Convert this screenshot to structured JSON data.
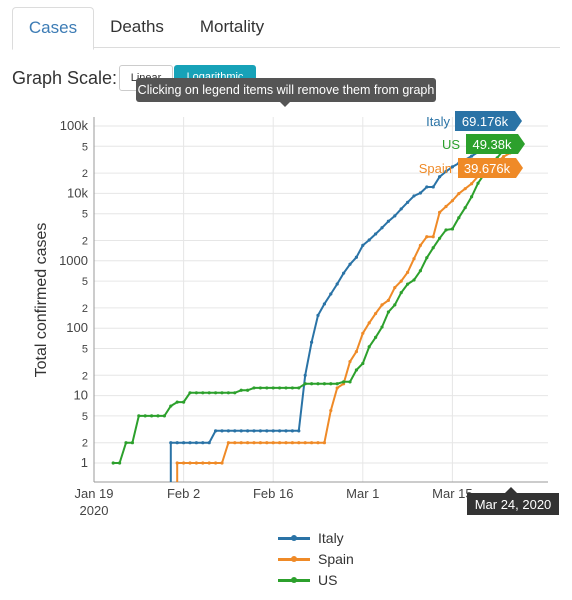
{
  "tabs": [
    {
      "label": "Cases",
      "active": true
    },
    {
      "label": "Deaths",
      "active": false
    },
    {
      "label": "Mortality",
      "active": false
    }
  ],
  "scale": {
    "label": "Graph Scale:",
    "linear_label": "Linear",
    "log_label": "Logarithmic",
    "selected": "Logarithmic"
  },
  "tooltip": "Clicking on legend items will remove them from graph",
  "hover_date": "Mar 24, 2020",
  "colors": {
    "Italy": "#2a73a6",
    "Spain": "#ef8a27",
    "US": "#2ca02c"
  },
  "chart_data": {
    "type": "line",
    "log_scale": true,
    "ylabel": "Total confirmed cases",
    "xlabel": "",
    "grid": true,
    "legend_position": "bottom",
    "x_ticks": [
      "Jan 19\n2020",
      "Feb 2",
      "Feb 16",
      "Mar 1",
      "Mar 15"
    ],
    "y_ticks": [
      "1",
      "2",
      "5",
      "10",
      "2",
      "5",
      "100",
      "2",
      "5",
      "1000",
      "2",
      "5",
      "10k",
      "2",
      "5",
      "100k"
    ],
    "y_tick_values": [
      1,
      2,
      5,
      10,
      20,
      50,
      100,
      200,
      500,
      1000,
      2000,
      5000,
      10000,
      20000,
      50000,
      100000
    ],
    "xlim": [
      "2020-01-19",
      "2020-03-24"
    ],
    "ylim": [
      1,
      100000
    ],
    "series": [
      {
        "name": "Italy",
        "color": "#2a73a6",
        "hover_label": "69.176k",
        "points": [
          [
            "2020-01-31",
            2
          ],
          [
            "2020-02-01",
            2
          ],
          [
            "2020-02-02",
            2
          ],
          [
            "2020-02-03",
            2
          ],
          [
            "2020-02-04",
            2
          ],
          [
            "2020-02-05",
            2
          ],
          [
            "2020-02-06",
            2
          ],
          [
            "2020-02-07",
            3
          ],
          [
            "2020-02-08",
            3
          ],
          [
            "2020-02-09",
            3
          ],
          [
            "2020-02-10",
            3
          ],
          [
            "2020-02-11",
            3
          ],
          [
            "2020-02-12",
            3
          ],
          [
            "2020-02-13",
            3
          ],
          [
            "2020-02-14",
            3
          ],
          [
            "2020-02-15",
            3
          ],
          [
            "2020-02-16",
            3
          ],
          [
            "2020-02-17",
            3
          ],
          [
            "2020-02-18",
            3
          ],
          [
            "2020-02-19",
            3
          ],
          [
            "2020-02-20",
            3
          ],
          [
            "2020-02-21",
            20
          ],
          [
            "2020-02-22",
            62
          ],
          [
            "2020-02-23",
            155
          ],
          [
            "2020-02-24",
            229
          ],
          [
            "2020-02-25",
            322
          ],
          [
            "2020-02-26",
            453
          ],
          [
            "2020-02-27",
            655
          ],
          [
            "2020-02-28",
            888
          ],
          [
            "2020-02-29",
            1128
          ],
          [
            "2020-03-01",
            1694
          ],
          [
            "2020-03-02",
            2036
          ],
          [
            "2020-03-03",
            2502
          ],
          [
            "2020-03-04",
            3089
          ],
          [
            "2020-03-05",
            3858
          ],
          [
            "2020-03-06",
            4636
          ],
          [
            "2020-03-07",
            5883
          ],
          [
            "2020-03-08",
            7375
          ],
          [
            "2020-03-09",
            9172
          ],
          [
            "2020-03-10",
            10149
          ],
          [
            "2020-03-11",
            12462
          ],
          [
            "2020-03-12",
            12462
          ],
          [
            "2020-03-13",
            17660
          ],
          [
            "2020-03-14",
            21157
          ],
          [
            "2020-03-15",
            24747
          ],
          [
            "2020-03-16",
            27980
          ],
          [
            "2020-03-17",
            31506
          ],
          [
            "2020-03-18",
            35713
          ],
          [
            "2020-03-19",
            41035
          ],
          [
            "2020-03-20",
            47021
          ],
          [
            "2020-03-21",
            53578
          ],
          [
            "2020-03-22",
            59138
          ],
          [
            "2020-03-23",
            63927
          ],
          [
            "2020-03-24",
            69176
          ]
        ]
      },
      {
        "name": "Spain",
        "color": "#ef8a27",
        "hover_label": "39.676k",
        "points": [
          [
            "2020-02-01",
            1
          ],
          [
            "2020-02-02",
            1
          ],
          [
            "2020-02-03",
            1
          ],
          [
            "2020-02-04",
            1
          ],
          [
            "2020-02-05",
            1
          ],
          [
            "2020-02-06",
            1
          ],
          [
            "2020-02-07",
            1
          ],
          [
            "2020-02-08",
            1
          ],
          [
            "2020-02-09",
            2
          ],
          [
            "2020-02-10",
            2
          ],
          [
            "2020-02-11",
            2
          ],
          [
            "2020-02-12",
            2
          ],
          [
            "2020-02-13",
            2
          ],
          [
            "2020-02-14",
            2
          ],
          [
            "2020-02-15",
            2
          ],
          [
            "2020-02-16",
            2
          ],
          [
            "2020-02-17",
            2
          ],
          [
            "2020-02-18",
            2
          ],
          [
            "2020-02-19",
            2
          ],
          [
            "2020-02-20",
            2
          ],
          [
            "2020-02-21",
            2
          ],
          [
            "2020-02-22",
            2
          ],
          [
            "2020-02-23",
            2
          ],
          [
            "2020-02-24",
            2
          ],
          [
            "2020-02-25",
            6
          ],
          [
            "2020-02-26",
            13
          ],
          [
            "2020-02-27",
            15
          ],
          [
            "2020-02-28",
            32
          ],
          [
            "2020-02-29",
            45
          ],
          [
            "2020-03-01",
            84
          ],
          [
            "2020-03-02",
            120
          ],
          [
            "2020-03-03",
            165
          ],
          [
            "2020-03-04",
            222
          ],
          [
            "2020-03-05",
            259
          ],
          [
            "2020-03-06",
            400
          ],
          [
            "2020-03-07",
            500
          ],
          [
            "2020-03-08",
            673
          ],
          [
            "2020-03-09",
            1073
          ],
          [
            "2020-03-10",
            1695
          ],
          [
            "2020-03-11",
            2277
          ],
          [
            "2020-03-12",
            2277
          ],
          [
            "2020-03-13",
            5232
          ],
          [
            "2020-03-14",
            6391
          ],
          [
            "2020-03-15",
            7798
          ],
          [
            "2020-03-16",
            9942
          ],
          [
            "2020-03-17",
            11748
          ],
          [
            "2020-03-18",
            13910
          ],
          [
            "2020-03-19",
            17963
          ],
          [
            "2020-03-20",
            20410
          ],
          [
            "2020-03-21",
            25374
          ],
          [
            "2020-03-22",
            28768
          ],
          [
            "2020-03-23",
            35136
          ],
          [
            "2020-03-24",
            39676
          ]
        ]
      },
      {
        "name": "US",
        "color": "#2ca02c",
        "hover_label": "49.38k",
        "points": [
          [
            "2020-01-22",
            1
          ],
          [
            "2020-01-23",
            1
          ],
          [
            "2020-01-24",
            2
          ],
          [
            "2020-01-25",
            2
          ],
          [
            "2020-01-26",
            5
          ],
          [
            "2020-01-27",
            5
          ],
          [
            "2020-01-28",
            5
          ],
          [
            "2020-01-29",
            5
          ],
          [
            "2020-01-30",
            5
          ],
          [
            "2020-01-31",
            7
          ],
          [
            "2020-02-01",
            8
          ],
          [
            "2020-02-02",
            8
          ],
          [
            "2020-02-03",
            11
          ],
          [
            "2020-02-04",
            11
          ],
          [
            "2020-02-05",
            11
          ],
          [
            "2020-02-06",
            11
          ],
          [
            "2020-02-07",
            11
          ],
          [
            "2020-02-08",
            11
          ],
          [
            "2020-02-09",
            11
          ],
          [
            "2020-02-10",
            11
          ],
          [
            "2020-02-11",
            12
          ],
          [
            "2020-02-12",
            12
          ],
          [
            "2020-02-13",
            13
          ],
          [
            "2020-02-14",
            13
          ],
          [
            "2020-02-15",
            13
          ],
          [
            "2020-02-16",
            13
          ],
          [
            "2020-02-17",
            13
          ],
          [
            "2020-02-18",
            13
          ],
          [
            "2020-02-19",
            13
          ],
          [
            "2020-02-20",
            13
          ],
          [
            "2020-02-21",
            15
          ],
          [
            "2020-02-22",
            15
          ],
          [
            "2020-02-23",
            15
          ],
          [
            "2020-02-24",
            15
          ],
          [
            "2020-02-25",
            15
          ],
          [
            "2020-02-26",
            15
          ],
          [
            "2020-02-27",
            16
          ],
          [
            "2020-02-28",
            16
          ],
          [
            "2020-02-29",
            24
          ],
          [
            "2020-03-01",
            30
          ],
          [
            "2020-03-02",
            53
          ],
          [
            "2020-03-03",
            73
          ],
          [
            "2020-03-04",
            104
          ],
          [
            "2020-03-05",
            174
          ],
          [
            "2020-03-06",
            222
          ],
          [
            "2020-03-07",
            337
          ],
          [
            "2020-03-08",
            451
          ],
          [
            "2020-03-09",
            519
          ],
          [
            "2020-03-10",
            711
          ],
          [
            "2020-03-11",
            1109
          ],
          [
            "2020-03-12",
            1561
          ],
          [
            "2020-03-13",
            2157
          ],
          [
            "2020-03-14",
            2870
          ],
          [
            "2020-03-15",
            2968
          ],
          [
            "2020-03-16",
            4360
          ],
          [
            "2020-03-17",
            6141
          ],
          [
            "2020-03-18",
            8914
          ],
          [
            "2020-03-19",
            14153
          ],
          [
            "2020-03-20",
            19479
          ],
          [
            "2020-03-21",
            25818
          ],
          [
            "2020-03-22",
            33756
          ],
          [
            "2020-03-23",
            43845
          ],
          [
            "2020-03-24",
            49380
          ]
        ]
      }
    ]
  }
}
